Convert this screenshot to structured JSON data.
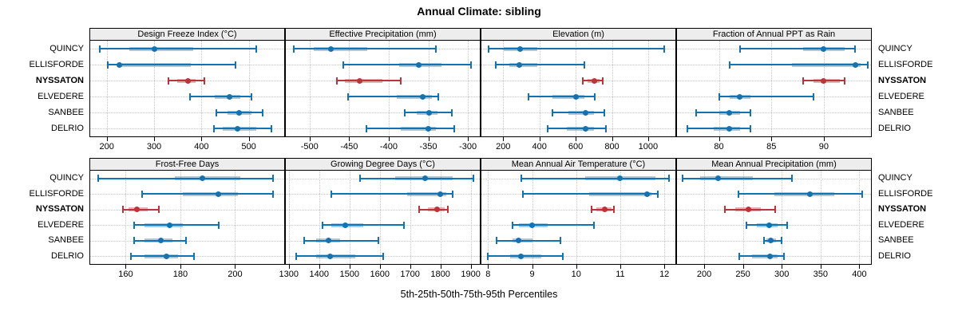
{
  "chart_data": {
    "type": "trellis-dot-whisker",
    "title": "Annual Climate: sibling",
    "caption": "5th-25th-50th-75th-95th Percentiles",
    "legend_position": "none",
    "grid": "dotted",
    "percentile_levels": [
      5,
      25,
      50,
      75,
      95
    ],
    "stations": [
      {
        "name": "QUINCY",
        "highlight": false
      },
      {
        "name": "ELLISFORDE",
        "highlight": false
      },
      {
        "name": "NYSSATON",
        "highlight": true
      },
      {
        "name": "ELVEDERE",
        "highlight": false
      },
      {
        "name": "SANBEE",
        "highlight": false
      },
      {
        "name": "DELRIO",
        "highlight": false
      }
    ],
    "panels": [
      {
        "title": "Design Freeze Index (°C)",
        "xlim": [
          165,
          575
        ],
        "ticks": [
          200,
          300,
          400,
          500
        ],
        "values": [
          [
            186,
            248,
            300,
            383,
            516
          ],
          [
            202,
            222,
            227,
            378,
            472
          ],
          [
            330,
            349,
            372,
            388,
            406
          ],
          [
            376,
            428,
            460,
            483,
            505
          ],
          [
            431,
            456,
            480,
            505,
            530
          ],
          [
            427,
            445,
            477,
            516,
            548
          ]
        ]
      },
      {
        "title": "Effective Precipitation (mm)",
        "xlim": [
          -530,
          -285
        ],
        "ticks": [
          -500,
          -450,
          -400,
          -350,
          -300
        ],
        "values": [
          [
            -520,
            -495,
            -473,
            -427,
            -340
          ],
          [
            -457,
            -387,
            -362,
            -333,
            -296
          ],
          [
            -465,
            -455,
            -437,
            -408,
            -385
          ],
          [
            -451,
            -390,
            -357,
            -345,
            -337
          ],
          [
            -380,
            -365,
            -349,
            -338,
            -320
          ],
          [
            -428,
            -385,
            -350,
            -340,
            -317
          ]
        ]
      },
      {
        "title": "Elevation (m)",
        "xlim": [
          80,
          1150
        ],
        "ticks": [
          200,
          400,
          600,
          800,
          1000
        ],
        "values": [
          [
            120,
            205,
            295,
            390,
            1090
          ],
          [
            160,
            235,
            290,
            390,
            650
          ],
          [
            640,
            665,
            705,
            730,
            750
          ],
          [
            340,
            470,
            600,
            650,
            705
          ],
          [
            470,
            560,
            655,
            700,
            760
          ],
          [
            445,
            550,
            655,
            700,
            765
          ]
        ]
      },
      {
        "title": "Fraction of Annual PPT as Rain",
        "xlim": [
          76,
          94.5
        ],
        "ticks": [
          80,
          85,
          90
        ],
        "values": [
          [
            82,
            88,
            90,
            92,
            93
          ],
          [
            81,
            87,
            93,
            93.5,
            94.2
          ],
          [
            88,
            89,
            90,
            91.5,
            92
          ],
          [
            80,
            81,
            82,
            83,
            89
          ],
          [
            77.8,
            80,
            81,
            82,
            83
          ],
          [
            77,
            79.5,
            81,
            82,
            83
          ]
        ]
      },
      {
        "title": "Frost-Free Days",
        "xlim": [
          147,
          218
        ],
        "ticks": [
          160,
          180,
          200
        ],
        "values": [
          [
            150,
            178,
            188,
            202,
            214
          ],
          [
            166,
            181,
            194,
            201,
            214
          ],
          [
            159,
            161,
            164,
            168,
            172
          ],
          [
            163,
            167,
            176,
            181,
            194
          ],
          [
            163,
            167,
            173,
            177,
            182
          ],
          [
            162,
            167,
            175,
            179,
            185
          ]
        ]
      },
      {
        "title": "Growing Degree Days (°C)",
        "xlim": [
          1290,
          1930
        ],
        "ticks": [
          1300,
          1400,
          1500,
          1600,
          1700,
          1800,
          1900
        ],
        "values": [
          [
            1535,
            1650,
            1750,
            1840,
            1910
          ],
          [
            1440,
            1690,
            1800,
            1820,
            1840
          ],
          [
            1730,
            1760,
            1790,
            1815,
            1825
          ],
          [
            1410,
            1440,
            1485,
            1545,
            1680
          ],
          [
            1350,
            1390,
            1430,
            1470,
            1595
          ],
          [
            1325,
            1390,
            1435,
            1520,
            1610
          ]
        ]
      },
      {
        "title": "Mean Annual Air Temperature (°C)",
        "xlim": [
          7.85,
          12.25
        ],
        "ticks": [
          8,
          9,
          10,
          11,
          12
        ],
        "values": [
          [
            8.75,
            10.2,
            11,
            11.8,
            12.1
          ],
          [
            8.8,
            10.3,
            11.6,
            11.7,
            11.85
          ],
          [
            10.35,
            10.45,
            10.65,
            10.8,
            10.85
          ],
          [
            8.55,
            8.7,
            9,
            9.35,
            10.4
          ],
          [
            8.2,
            8.55,
            8.7,
            9,
            9.65
          ],
          [
            8,
            8.5,
            8.75,
            9.2,
            9.7
          ]
        ]
      },
      {
        "title": "Mean Annual Precipitation (mm)",
        "xlim": [
          165,
          415
        ],
        "ticks": [
          200,
          250,
          300,
          350,
          400
        ],
        "values": [
          [
            172,
            195,
            218,
            263,
            313
          ],
          [
            244,
            290,
            336,
            368,
            404
          ],
          [
            227,
            240,
            257,
            273,
            292
          ],
          [
            255,
            268,
            284,
            295,
            307
          ],
          [
            277,
            280,
            286,
            293,
            300
          ],
          [
            245,
            262,
            285,
            295,
            303
          ]
        ]
      }
    ],
    "colors": {
      "normal": "#1273b4",
      "highlight": "#bb3538",
      "band_alpha": 0.38,
      "grid": "#c6c6c6",
      "strip_bg": "#ededed",
      "border": "#000000"
    }
  }
}
